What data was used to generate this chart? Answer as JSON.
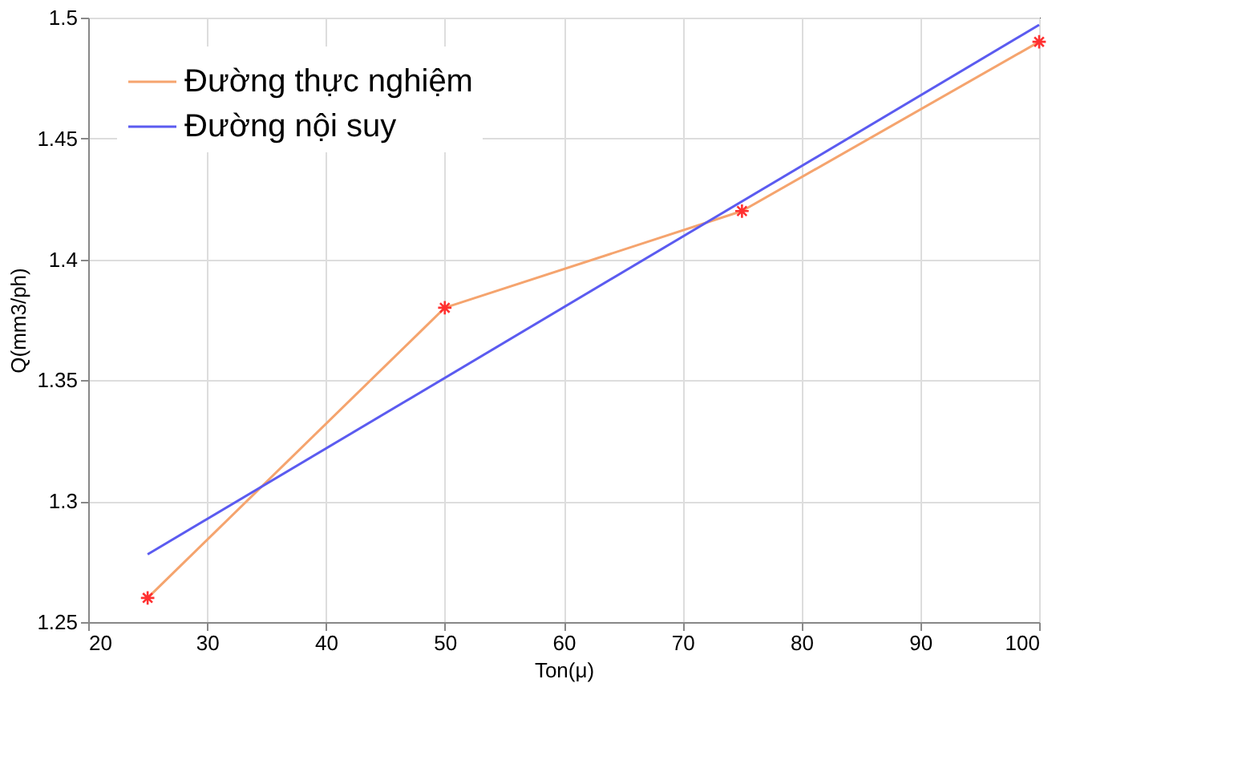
{
  "chart_data": {
    "type": "line",
    "xlabel": "Ton(μ)",
    "ylabel": "Q(mm3/ph)",
    "xlim": [
      20,
      100
    ],
    "ylim": [
      1.25,
      1.5
    ],
    "xticks": [
      20,
      30,
      40,
      50,
      60,
      70,
      80,
      90,
      100
    ],
    "yticks": [
      1.25,
      1.3,
      1.35,
      1.4,
      1.45,
      1.5
    ],
    "grid": true,
    "legend": "top left",
    "line_style": "solid",
    "series": [
      {
        "name": "Đường thực nghiệm",
        "color": "#f5a46e",
        "marker": "none",
        "x": [
          25,
          50,
          75,
          100
        ],
        "values": [
          1.26,
          1.38,
          1.42,
          1.49
        ]
      },
      {
        "color": "#ff3030",
        "type": "scatter",
        "marker": "cross",
        "x": [
          25,
          50,
          75,
          100
        ],
        "values": [
          1.26,
          1.38,
          1.42,
          1.49
        ]
      },
      {
        "name": "Đường nội suy",
        "color": "#5b5bf0",
        "marker": "none",
        "x": [
          25,
          100
        ],
        "values": [
          1.278,
          1.497
        ]
      }
    ]
  }
}
